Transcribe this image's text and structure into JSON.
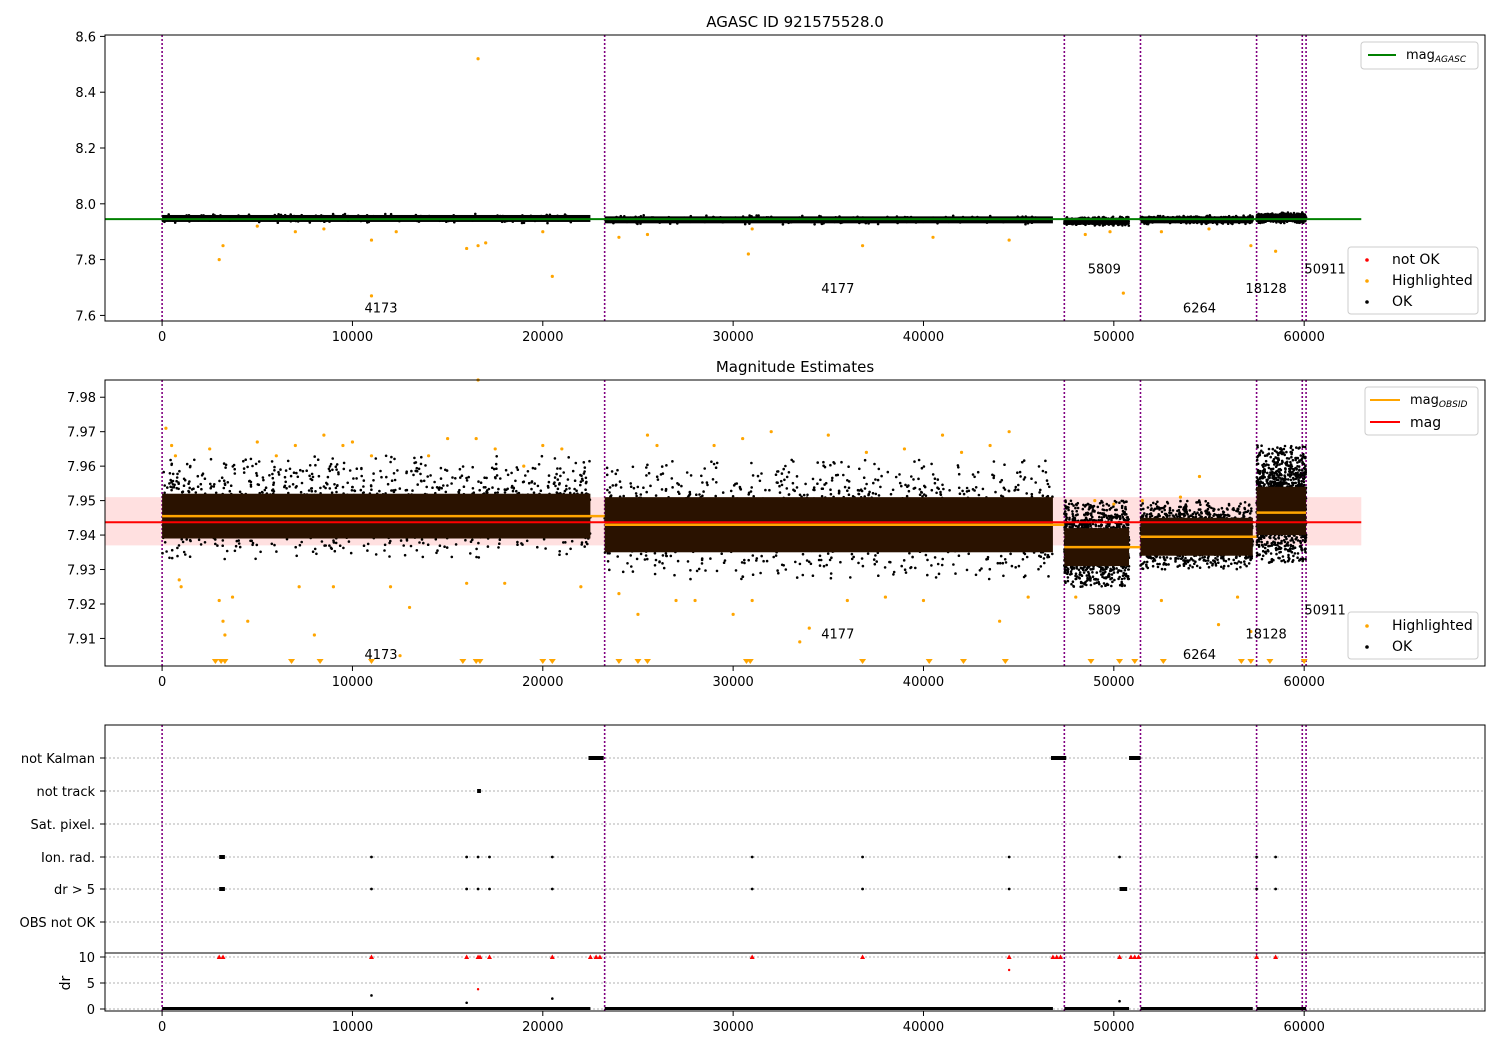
{
  "chart_data": [
    {
      "type": "scatter",
      "title": "AGASC ID 921575528.0",
      "xlabel": "",
      "ylabel": "",
      "xlim": [
        -3000,
        69500
      ],
      "ylim": [
        7.58,
        8.605
      ],
      "xticks": [
        "0",
        "10000",
        "20000",
        "30000",
        "40000",
        "50000",
        "60000"
      ],
      "xtick_values": [
        0,
        10000,
        20000,
        30000,
        40000,
        50000,
        60000
      ],
      "yticks": [
        "7.6",
        "7.8",
        "8.0",
        "8.2",
        "8.4",
        "8.6"
      ],
      "ytick_values": [
        7.6,
        7.8,
        8.0,
        8.2,
        8.4,
        8.6
      ],
      "obs_boundaries": [
        0,
        23250,
        47400,
        51400,
        57500,
        59900,
        60100
      ],
      "obs_labels": [
        {
          "text": "4173",
          "x": 11500,
          "y": 7.61
        },
        {
          "text": "4177",
          "x": 35500,
          "y": 7.68
        },
        {
          "text": "5809",
          "x": 49500,
          "y": 7.75
        },
        {
          "text": "6264",
          "x": 54500,
          "y": 7.61
        },
        {
          "text": "18128",
          "x": 58000,
          "y": 7.68
        },
        {
          "text": "50911",
          "x": 61100,
          "y": 7.75
        }
      ],
      "series": [
        {
          "name": "not OK",
          "color": "#ff0000",
          "marker": "dot"
        },
        {
          "name": "Highlighted",
          "color": "#ffa500",
          "marker": "dot"
        },
        {
          "name": "OK",
          "color": "#000000",
          "marker": "dot"
        }
      ],
      "segments_ok": [
        {
          "x0": 0,
          "x1": 22500,
          "y_lo": 7.935,
          "y_hi": 7.96
        },
        {
          "x0": 23250,
          "x1": 46800,
          "y_lo": 7.93,
          "y_hi": 7.955
        },
        {
          "x0": 47400,
          "x1": 50800,
          "y_lo": 7.925,
          "y_hi": 7.95
        },
        {
          "x0": 51400,
          "x1": 57300,
          "y_lo": 7.93,
          "y_hi": 7.955
        },
        {
          "x0": 57500,
          "x1": 60100,
          "y_lo": 7.935,
          "y_hi": 7.965
        }
      ],
      "highlighted_points": [
        [
          3000,
          7.8
        ],
        [
          3200,
          7.85
        ],
        [
          5000,
          7.92
        ],
        [
          7000,
          7.9
        ],
        [
          8500,
          7.91
        ],
        [
          11000,
          7.67
        ],
        [
          11000,
          7.87
        ],
        [
          12300,
          7.9
        ],
        [
          16000,
          7.84
        ],
        [
          16600,
          7.85
        ],
        [
          16600,
          8.52
        ],
        [
          17000,
          7.86
        ],
        [
          20500,
          7.74
        ],
        [
          20000,
          7.9
        ],
        [
          24000,
          7.88
        ],
        [
          25500,
          7.89
        ],
        [
          30800,
          7.82
        ],
        [
          31000,
          7.91
        ],
        [
          36800,
          7.85
        ],
        [
          40500,
          7.88
        ],
        [
          44500,
          7.87
        ],
        [
          48500,
          7.89
        ],
        [
          50500,
          7.68
        ],
        [
          49800,
          7.9
        ],
        [
          52500,
          7.9
        ],
        [
          55000,
          7.91
        ],
        [
          57200,
          7.85
        ],
        [
          58500,
          7.83
        ]
      ],
      "reference_lines": [
        {
          "name": "mag_AGASC",
          "color": "#008000",
          "y": 7.945,
          "x0": -3000,
          "x1": 63000
        }
      ],
      "legend": [
        "mag_AGASC"
      ],
      "legend_placement": "top-right",
      "legend2": [
        "not OK",
        "Highlighted",
        "OK"
      ],
      "legend2_placement": "bottom-right"
    },
    {
      "type": "scatter",
      "title": "Magnitude Estimates",
      "xlabel": "",
      "ylabel": "",
      "xlim": [
        -3000,
        69500
      ],
      "ylim": [
        7.902,
        7.985
      ],
      "xticks": [
        "0",
        "10000",
        "20000",
        "30000",
        "40000",
        "50000",
        "60000"
      ],
      "xtick_values": [
        0,
        10000,
        20000,
        30000,
        40000,
        50000,
        60000
      ],
      "yticks": [
        "7.91",
        "7.92",
        "7.93",
        "7.94",
        "7.95",
        "7.96",
        "7.97",
        "7.98"
      ],
      "ytick_values": [
        7.91,
        7.92,
        7.93,
        7.94,
        7.95,
        7.96,
        7.97,
        7.98
      ],
      "obs_boundaries": [
        0,
        23250,
        47400,
        51400,
        57500,
        59900,
        60100
      ],
      "obs_labels": [
        {
          "text": "4173",
          "x": 11500,
          "y": 7.904
        },
        {
          "text": "4177",
          "x": 35500,
          "y": 7.91
        },
        {
          "text": "5809",
          "x": 49500,
          "y": 7.917
        },
        {
          "text": "6264",
          "x": 54500,
          "y": 7.904
        },
        {
          "text": "18128",
          "x": 58000,
          "y": 7.91
        },
        {
          "text": "50911",
          "x": 61100,
          "y": 7.917
        }
      ],
      "series": [
        {
          "name": "Highlighted",
          "color": "#ffa500",
          "marker": "dot"
        },
        {
          "name": "OK",
          "color": "#000000",
          "marker": "dot"
        }
      ],
      "segments_ok": [
        {
          "x0": 0,
          "x1": 22500,
          "y_lo": 7.933,
          "y_hi": 7.963,
          "band_lo": 7.939,
          "band_hi": 7.952,
          "mean": 7.9455
        },
        {
          "x0": 23250,
          "x1": 46800,
          "y_lo": 7.927,
          "y_hi": 7.962,
          "band_lo": 7.935,
          "band_hi": 7.951,
          "mean": 7.943
        },
        {
          "x0": 47400,
          "x1": 50800,
          "y_lo": 7.925,
          "y_hi": 7.95,
          "band_lo": 7.931,
          "band_hi": 7.942,
          "mean": 7.9365
        },
        {
          "x0": 51400,
          "x1": 57300,
          "y_lo": 7.93,
          "y_hi": 7.95,
          "band_lo": 7.934,
          "band_hi": 7.945,
          "mean": 7.9395
        },
        {
          "x0": 57500,
          "x1": 60100,
          "y_lo": 7.932,
          "y_hi": 7.966,
          "band_lo": 7.94,
          "band_hi": 7.954,
          "mean": 7.9465
        }
      ],
      "mag_obsid_segments": [
        {
          "x0": 0,
          "x1": 23250,
          "y": 7.9455
        },
        {
          "x0": 23250,
          "x1": 47400,
          "y": 7.943
        },
        {
          "x0": 47400,
          "x1": 51400,
          "y": 7.9365
        },
        {
          "x0": 51400,
          "x1": 57500,
          "y": 7.9395
        },
        {
          "x0": 57500,
          "x1": 60100,
          "y": 7.9465
        }
      ],
      "mag": {
        "y": 7.9437,
        "y_lo": 7.937,
        "y_hi": 7.951,
        "x0": -3000,
        "x1": 63000
      },
      "highlighted_points": [
        [
          200,
          7.971
        ],
        [
          500,
          7.966
        ],
        [
          700,
          7.963
        ],
        [
          900,
          7.927
        ],
        [
          1000,
          7.925
        ],
        [
          2500,
          7.965
        ],
        [
          3000,
          7.921
        ],
        [
          3200,
          7.915
        ],
        [
          3300,
          7.911
        ],
        [
          3700,
          7.922
        ],
        [
          4500,
          7.915
        ],
        [
          5000,
          7.967
        ],
        [
          6000,
          7.963
        ],
        [
          7000,
          7.966
        ],
        [
          7200,
          7.925
        ],
        [
          8000,
          7.911
        ],
        [
          8500,
          7.969
        ],
        [
          9000,
          7.925
        ],
        [
          9500,
          7.966
        ],
        [
          10000,
          7.967
        ],
        [
          11000,
          7.963
        ],
        [
          12000,
          7.925
        ],
        [
          12500,
          7.905
        ],
        [
          13000,
          7.919
        ],
        [
          14000,
          7.963
        ],
        [
          15000,
          7.968
        ],
        [
          16000,
          7.926
        ],
        [
          16600,
          7.985
        ],
        [
          16500,
          7.968
        ],
        [
          17500,
          7.965
        ],
        [
          18000,
          7.926
        ],
        [
          19000,
          7.96
        ],
        [
          20000,
          7.966
        ],
        [
          21000,
          7.965
        ],
        [
          22000,
          7.925
        ],
        [
          24000,
          7.923
        ],
        [
          25000,
          7.917
        ],
        [
          25500,
          7.969
        ],
        [
          26000,
          7.966
        ],
        [
          27000,
          7.921
        ],
        [
          28000,
          7.921
        ],
        [
          29000,
          7.966
        ],
        [
          30000,
          7.917
        ],
        [
          30500,
          7.968
        ],
        [
          31000,
          7.921
        ],
        [
          32000,
          7.97
        ],
        [
          33500,
          7.909
        ],
        [
          34000,
          7.913
        ],
        [
          35000,
          7.969
        ],
        [
          36000,
          7.921
        ],
        [
          37000,
          7.964
        ],
        [
          38000,
          7.922
        ],
        [
          39000,
          7.965
        ],
        [
          40000,
          7.921
        ],
        [
          41000,
          7.969
        ],
        [
          42000,
          7.964
        ],
        [
          43500,
          7.966
        ],
        [
          44000,
          7.915
        ],
        [
          44500,
          7.97
        ],
        [
          45500,
          7.922
        ],
        [
          48000,
          7.922
        ],
        [
          49000,
          7.95
        ],
        [
          50000,
          7.949
        ],
        [
          51500,
          7.95
        ],
        [
          52500,
          7.921
        ],
        [
          53500,
          7.951
        ],
        [
          54500,
          7.957
        ],
        [
          55500,
          7.914
        ],
        [
          56500,
          7.922
        ],
        [
          57200,
          7.912
        ]
      ],
      "clipped_low_points": [
        2800,
        3100,
        3300,
        6800,
        8300,
        11000,
        15800,
        16500,
        16700,
        20000,
        20500,
        24000,
        25000,
        25500,
        30700,
        30900,
        36800,
        40300,
        42100,
        44300,
        48800,
        50300,
        51100,
        52600,
        56700,
        57200,
        58200,
        60000
      ],
      "legend": [
        "mag_OBSID",
        "mag"
      ],
      "legend_placement": "top-right",
      "legend2": [
        "Highlighted",
        "OK"
      ],
      "legend2_placement": "bottom-right"
    },
    {
      "type": "scatter",
      "title": "",
      "xlabel": "",
      "ylabel": "dr",
      "xlim": [
        -3000,
        69500
      ],
      "xticks": [
        "0",
        "10000",
        "20000",
        "30000",
        "40000",
        "50000",
        "60000"
      ],
      "xtick_values": [
        0,
        10000,
        20000,
        30000,
        40000,
        50000,
        60000
      ],
      "flag_rows": [
        "not Kalman",
        "not track",
        "Sat. pixel.",
        "Ion. rad.",
        "dr > 5",
        "OBS not OK"
      ],
      "flag_points": {
        "not Kalman": [
          [
            22400,
            23200
          ],
          [
            46700,
            47500
          ],
          [
            50800,
            51400
          ]
        ],
        "not track": [
          [
            16550,
            16750
          ]
        ],
        "Sat. pixel.": [],
        "Ion. rad.": [
          [
            3000,
            3300
          ],
          [
            11000,
            11000
          ],
          [
            16000,
            16000
          ],
          [
            16600,
            16600
          ],
          [
            17200,
            17200
          ],
          [
            20500,
            20500
          ],
          [
            31000,
            31000
          ],
          [
            36800,
            36800
          ],
          [
            44500,
            44500
          ],
          [
            50300,
            50300
          ],
          [
            57500,
            57500
          ],
          [
            58500,
            58500
          ]
        ],
        "dr > 5": [
          [
            3000,
            3300
          ],
          [
            11000,
            11000
          ],
          [
            16000,
            16000
          ],
          [
            16600,
            16600
          ],
          [
            17200,
            17200
          ],
          [
            20500,
            20500
          ],
          [
            31000,
            31000
          ],
          [
            36800,
            36800
          ],
          [
            44500,
            44500
          ],
          [
            50300,
            50700
          ],
          [
            57500,
            57500
          ],
          [
            58500,
            58500
          ]
        ],
        "OBS not OK": []
      },
      "dr_yticks": [
        "0",
        "5",
        "10"
      ],
      "dr_ytick_values": [
        0,
        5,
        10
      ],
      "dr_ylim": [
        0,
        10.5
      ],
      "dr_red_points": [
        3000,
        3200,
        11000,
        16000,
        16600,
        16700,
        17200,
        20500,
        22500,
        22800,
        23000,
        31000,
        36800,
        44500,
        46800,
        47000,
        47200,
        50300,
        50900,
        51100,
        51300,
        57500,
        58500
      ],
      "dr_red_low": [
        [
          44500,
          7.5
        ],
        [
          16600,
          3.8
        ]
      ],
      "dr_black_high": [
        [
          11000,
          2.6
        ],
        [
          20500,
          2.0
        ],
        [
          16000,
          1.2
        ],
        [
          50300,
          1.5
        ]
      ],
      "dr_segments": [
        [
          0,
          22500
        ],
        [
          23250,
          46800
        ],
        [
          47400,
          50800
        ],
        [
          51400,
          57300
        ],
        [
          57500,
          60100
        ]
      ],
      "obs_boundaries": [
        0,
        23250,
        47400,
        51400,
        57500,
        59900,
        60100
      ]
    }
  ]
}
